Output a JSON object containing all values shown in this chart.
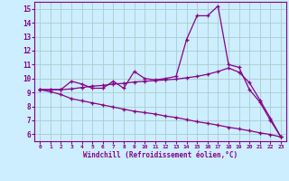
{
  "x": [
    0,
    1,
    2,
    3,
    4,
    5,
    6,
    7,
    8,
    9,
    10,
    11,
    12,
    13,
    14,
    15,
    16,
    17,
    18,
    19,
    20,
    21,
    22,
    23
  ],
  "line_zigzag": [
    9.2,
    9.2,
    9.2,
    9.8,
    9.6,
    9.3,
    9.3,
    9.8,
    9.3,
    10.5,
    10.0,
    9.9,
    10.0,
    10.15,
    12.8,
    14.5,
    14.5,
    15.2,
    11.0,
    10.8,
    9.2,
    8.3,
    7.0,
    5.8
  ],
  "line_upper": [
    9.2,
    9.2,
    9.2,
    9.25,
    9.35,
    9.45,
    9.5,
    9.6,
    9.65,
    9.75,
    9.8,
    9.85,
    9.9,
    9.95,
    10.05,
    10.15,
    10.3,
    10.5,
    10.75,
    10.45,
    9.7,
    8.45,
    7.15,
    5.8
  ],
  "line_lower": [
    9.2,
    9.05,
    8.85,
    8.55,
    8.4,
    8.25,
    8.1,
    7.95,
    7.8,
    7.65,
    7.55,
    7.45,
    7.3,
    7.2,
    7.05,
    6.9,
    6.78,
    6.65,
    6.5,
    6.38,
    6.25,
    6.1,
    5.98,
    5.8
  ],
  "color": "#880088",
  "bg_color": "#cceeff",
  "grid_color": "#aacccc",
  "xlabel": "Windchill (Refroidissement éolien,°C)",
  "xlim": [
    -0.5,
    23.5
  ],
  "ylim": [
    5.5,
    15.5
  ],
  "yticks": [
    6,
    7,
    8,
    9,
    10,
    11,
    12,
    13,
    14,
    15
  ],
  "xticks": [
    0,
    1,
    2,
    3,
    4,
    5,
    6,
    7,
    8,
    9,
    10,
    11,
    12,
    13,
    14,
    15,
    16,
    17,
    18,
    19,
    20,
    21,
    22,
    23
  ]
}
